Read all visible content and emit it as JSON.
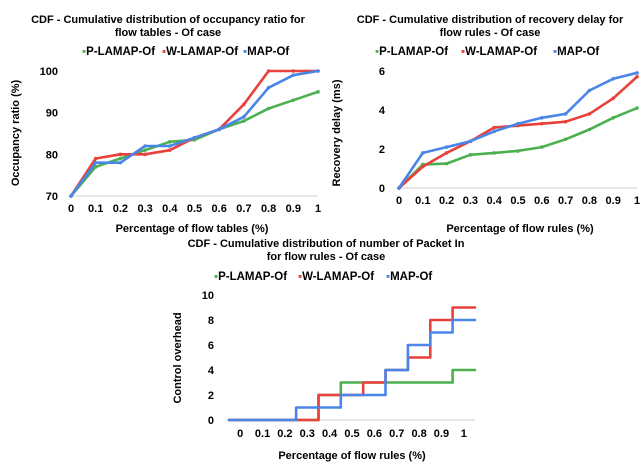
{
  "chart_data": [
    {
      "type": "line",
      "title_lines": [
        "CDF -  Cumulative distribution of occupancy ratio for",
        "flow tables  - Of case"
      ],
      "xlabel": "Percentage of flow tables (%)",
      "ylabel": "Occupancy ratio (%)",
      "x": [
        0,
        0.1,
        0.2,
        0.3,
        0.4,
        0.5,
        0.6,
        0.7,
        0.8,
        0.9,
        1
      ],
      "x_tick_labels": [
        "0",
        "0.1",
        "0.2",
        "0.3",
        "0.4",
        "0.5",
        "0.6",
        "0.7",
        "0.8",
        "0.9",
        "1"
      ],
      "ylim": [
        70,
        100
      ],
      "y_ticks": [
        70,
        80,
        90,
        100
      ],
      "grid": false,
      "legend_position": "top",
      "series": [
        {
          "name": "P-LAMAP-Of",
          "color": "#4caf50",
          "values": [
            70,
            77,
            79,
            81,
            83,
            83.5,
            86,
            88,
            91,
            93,
            95
          ]
        },
        {
          "name": "W-LAMAP-Of",
          "color": "#e8413c",
          "values": [
            70,
            79,
            80,
            80,
            81,
            84,
            86,
            92,
            100,
            100,
            100
          ]
        },
        {
          "name": "MAP-Of",
          "color": "#4a86e8",
          "values": [
            70,
            78,
            78,
            82,
            82,
            84,
            86,
            89,
            96,
            99,
            100
          ]
        }
      ]
    },
    {
      "type": "line",
      "title_lines": [
        "CDF -  Cumulative distribution of recovery delay for",
        "flow rules - Of case"
      ],
      "xlabel": "Percentage of flow rules (%)",
      "ylabel": "Recovery delay (ms)",
      "x": [
        0,
        0.1,
        0.2,
        0.3,
        0.4,
        0.5,
        0.6,
        0.7,
        0.8,
        0.9,
        1
      ],
      "x_tick_labels": [
        "0",
        "0.1",
        "0.2",
        "0.3",
        "0.4",
        "0.5",
        "0.6",
        "0.7",
        "0.8",
        "0.9",
        "1"
      ],
      "ylim": [
        0,
        6
      ],
      "y_ticks": [
        0,
        2,
        4,
        6
      ],
      "grid": false,
      "legend_position": "top",
      "series": [
        {
          "name": "P-LAMAP-Of",
          "color": "#4caf50",
          "values": [
            0,
            1.2,
            1.25,
            1.7,
            1.8,
            1.9,
            2.1,
            2.5,
            3.0,
            3.6,
            4.1
          ]
        },
        {
          "name": "W-LAMAP-Of",
          "color": "#e8413c",
          "values": [
            0,
            1.1,
            1.8,
            2.4,
            3.1,
            3.2,
            3.3,
            3.4,
            3.8,
            4.6,
            5.7
          ]
        },
        {
          "name": "MAP-Of",
          "color": "#4a86e8",
          "values": [
            0,
            1.8,
            2.1,
            2.4,
            2.9,
            3.3,
            3.6,
            3.8,
            5.0,
            5.6,
            5.9
          ]
        }
      ]
    },
    {
      "type": "line",
      "title_lines": [
        "CDF -  Cumulative distribution of number of Packet In",
        "for flow rules - Of case"
      ],
      "xlabel": "Percentage of flow rules (%)",
      "ylabel": "Control overhead",
      "x_tick_labels": [
        "0",
        "0.1",
        "0.2",
        "0.3",
        "0.4",
        "0.5",
        "0.6",
        "0.7",
        "0.8",
        "0.9",
        "1"
      ],
      "xlim": [
        -0.05,
        1.05
      ],
      "ylim": [
        0,
        10
      ],
      "y_ticks": [
        0,
        2,
        4,
        6,
        8,
        10
      ],
      "grid": false,
      "legend_position": "top",
      "series": [
        {
          "name": "P-LAMAP-Of",
          "color": "#4caf50",
          "points": [
            [
              -0.05,
              0
            ],
            [
              0.35,
              0
            ],
            [
              0.35,
              2
            ],
            [
              0.45,
              2
            ],
            [
              0.45,
              3
            ],
            [
              0.95,
              3
            ],
            [
              0.95,
              4
            ],
            [
              1.05,
              4
            ]
          ]
        },
        {
          "name": "W-LAMAP-Of",
          "color": "#e8413c",
          "points": [
            [
              -0.05,
              0
            ],
            [
              0.35,
              0
            ],
            [
              0.35,
              2
            ],
            [
              0.55,
              2
            ],
            [
              0.55,
              3
            ],
            [
              0.65,
              3
            ],
            [
              0.65,
              4
            ],
            [
              0.75,
              4
            ],
            [
              0.75,
              5
            ],
            [
              0.85,
              5
            ],
            [
              0.85,
              8
            ],
            [
              0.95,
              8
            ],
            [
              0.95,
              9
            ],
            [
              1.05,
              9
            ]
          ]
        },
        {
          "name": "MAP-Of",
          "color": "#4a86e8",
          "points": [
            [
              -0.05,
              0
            ],
            [
              0.25,
              0
            ],
            [
              0.25,
              1
            ],
            [
              0.45,
              1
            ],
            [
              0.45,
              2
            ],
            [
              0.65,
              2
            ],
            [
              0.65,
              4
            ],
            [
              0.75,
              4
            ],
            [
              0.75,
              6
            ],
            [
              0.85,
              6
            ],
            [
              0.85,
              7
            ],
            [
              0.95,
              7
            ],
            [
              0.95,
              8
            ],
            [
              1.05,
              8
            ]
          ]
        }
      ]
    }
  ]
}
